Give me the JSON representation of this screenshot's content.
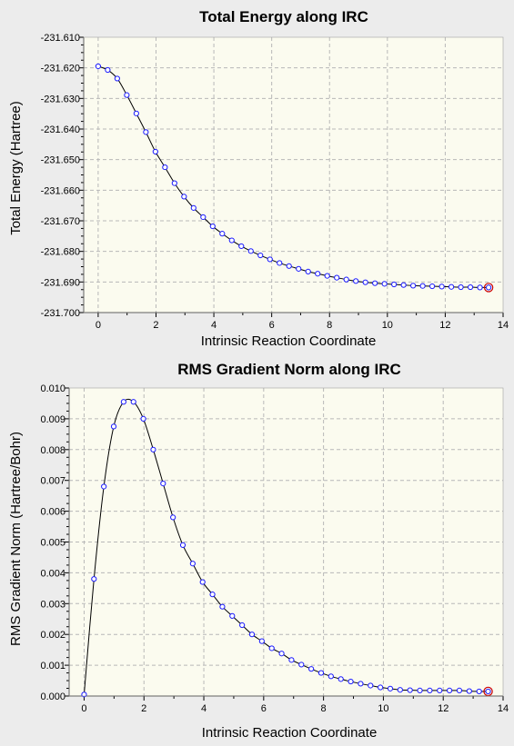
{
  "colors": {
    "page_background": "#ececec",
    "plot_background": "#fbfbef",
    "grid": "#b8b8b8",
    "line": "#000000",
    "marker_fill": "#ffffff",
    "marker_edge": "#1a1aff",
    "endpoint_ring": "#cc0000"
  },
  "chart_data": [
    {
      "type": "line",
      "title": "Total Energy along IRC",
      "xlabel": "Intrinsic Reaction Coordinate",
      "ylabel": "Total Energy (Hartree)",
      "xlim": [
        -0.5,
        14
      ],
      "ylim": [
        -231.7,
        -231.61
      ],
      "xticks": [
        0,
        2,
        4,
        6,
        8,
        10,
        12,
        14
      ],
      "xtick_labels": [
        "0",
        "2",
        "4",
        "6",
        "8",
        "10",
        "12",
        "14"
      ],
      "yticks": [
        -231.61,
        -231.62,
        -231.63,
        -231.64,
        -231.65,
        -231.66,
        -231.67,
        -231.68,
        -231.69,
        -231.7
      ],
      "ytick_labels": [
        "-231.610",
        "-231.620",
        "-231.630",
        "-231.640",
        "-231.650",
        "-231.660",
        "-231.670",
        "-231.680",
        "-231.690",
        "-231.700"
      ],
      "grid": true,
      "marker": "circle",
      "highlight_last_point": true,
      "x": [
        0.0,
        0.33,
        0.66,
        0.99,
        1.32,
        1.65,
        1.98,
        2.31,
        2.64,
        2.97,
        3.3,
        3.63,
        3.96,
        4.29,
        4.62,
        4.95,
        5.28,
        5.61,
        5.94,
        6.27,
        6.6,
        6.93,
        7.26,
        7.59,
        7.92,
        8.25,
        8.58,
        8.91,
        9.24,
        9.57,
        9.9,
        10.23,
        10.56,
        10.89,
        11.22,
        11.55,
        11.88,
        12.21,
        12.54,
        12.87,
        13.2,
        13.5
      ],
      "y": [
        -231.6195,
        -231.6207,
        -231.6235,
        -231.6289,
        -231.6349,
        -231.641,
        -231.6474,
        -231.6525,
        -231.6577,
        -231.6621,
        -231.6658,
        -231.6688,
        -231.6718,
        -231.6742,
        -231.6764,
        -231.6783,
        -231.6799,
        -231.6813,
        -231.6826,
        -231.6838,
        -231.6848,
        -231.6857,
        -231.6866,
        -231.6873,
        -231.688,
        -231.6886,
        -231.6892,
        -231.6897,
        -231.6901,
        -231.6904,
        -231.6906,
        -231.6908,
        -231.691,
        -231.6912,
        -231.6913,
        -231.6914,
        -231.6915,
        -231.6916,
        -231.6917,
        -231.6917,
        -231.6918,
        -231.6918
      ]
    },
    {
      "type": "line",
      "title": "RMS Gradient Norm along IRC",
      "xlabel": "Intrinsic Reaction Coordinate",
      "ylabel": "RMS Gradient Norm (Hartree/Bohr)",
      "xlim": [
        -0.5,
        14
      ],
      "ylim": [
        0.0,
        0.01
      ],
      "xticks": [
        0,
        2,
        4,
        6,
        8,
        10,
        12,
        14
      ],
      "xtick_labels": [
        "0",
        "2",
        "4",
        "6",
        "8",
        "10",
        "12",
        "14"
      ],
      "yticks": [
        0.0,
        0.001,
        0.002,
        0.003,
        0.004,
        0.005,
        0.006,
        0.007,
        0.008,
        0.009,
        0.01
      ],
      "ytick_labels": [
        "0.000",
        "0.001",
        "0.002",
        "0.003",
        "0.004",
        "0.005",
        "0.006",
        "0.007",
        "0.008",
        "0.009",
        "0.010"
      ],
      "grid": true,
      "marker": "circle",
      "highlight_last_point": true,
      "x": [
        0.0,
        0.33,
        0.66,
        0.99,
        1.32,
        1.65,
        1.98,
        2.31,
        2.64,
        2.97,
        3.3,
        3.63,
        3.96,
        4.29,
        4.62,
        4.95,
        5.28,
        5.61,
        5.94,
        6.27,
        6.6,
        6.93,
        7.26,
        7.59,
        7.92,
        8.25,
        8.58,
        8.91,
        9.24,
        9.57,
        9.9,
        10.23,
        10.56,
        10.89,
        11.22,
        11.55,
        11.88,
        12.21,
        12.54,
        12.87,
        13.2,
        13.5
      ],
      "y": [
        5e-05,
        0.0038,
        0.0068,
        0.00875,
        0.00955,
        0.00955,
        0.009,
        0.008,
        0.0069,
        0.0058,
        0.0049,
        0.0043,
        0.0037,
        0.0033,
        0.0029,
        0.0026,
        0.0023,
        0.002,
        0.00178,
        0.00155,
        0.00138,
        0.00117,
        0.00102,
        0.00088,
        0.00075,
        0.00064,
        0.00055,
        0.00047,
        0.0004,
        0.00034,
        0.00028,
        0.00024,
        0.0002,
        0.00019,
        0.00018,
        0.00018,
        0.00018,
        0.00018,
        0.00018,
        0.00016,
        0.00015,
        0.00015
      ]
    }
  ]
}
